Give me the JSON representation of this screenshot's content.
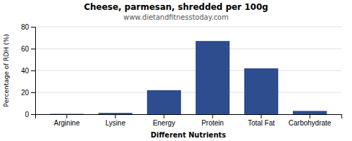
{
  "chart_data": {
    "type": "bar",
    "title": "Cheese, parmesan, shredded per 100g",
    "subtitle": "www.dietandfitnesstoday.com",
    "xlabel": "Different Nutrients",
    "ylabel": "Percentage of RDH (%)",
    "categories": [
      "Arginine",
      "Lysine",
      "Energy",
      "Protein",
      "Total Fat",
      "Carbohydrate"
    ],
    "values": [
      0.3,
      1.2,
      22,
      67,
      42,
      3
    ],
    "color": "#2e4d8e",
    "ylim": [
      0,
      80
    ],
    "yticks": [
      0,
      20,
      40,
      60,
      80
    ],
    "grid": true
  }
}
